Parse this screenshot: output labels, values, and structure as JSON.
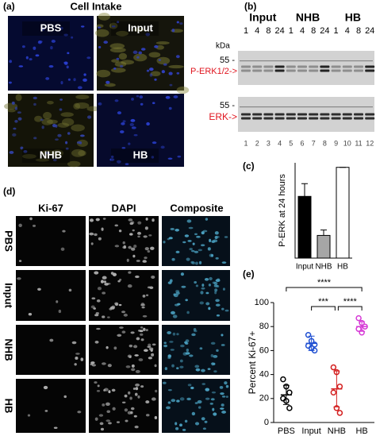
{
  "panel_a": {
    "label": "(a)",
    "title": "Cell Intake",
    "images": [
      "PBS",
      "Input",
      "NHB",
      "HB"
    ]
  },
  "panel_b": {
    "label": "(b)",
    "groups": [
      "Input",
      "NHB",
      "HB"
    ],
    "timepoints": [
      "1",
      "4",
      "8",
      "24",
      "1",
      "4",
      "8",
      "24",
      "1",
      "4",
      "8",
      "24"
    ],
    "unit": "kDa",
    "marker": "55 -",
    "band_top": "P-ERK1/2->",
    "band_bottom": "ERK->",
    "lanes": [
      "1",
      "2",
      "3",
      "4",
      "5",
      "6",
      "7",
      "8",
      "9",
      "10",
      "11",
      "12"
    ]
  },
  "panel_d": {
    "label": "(d)",
    "columns": [
      "Ki-67",
      "DAPI",
      "Composite"
    ],
    "rows": [
      "PBS",
      "Input",
      "NHB",
      "HB"
    ]
  },
  "chart_data": [
    {
      "type": "bar",
      "label": "(c)",
      "ylabel": "P-ERK at 24 hours",
      "categories": [
        "Input",
        "NHB",
        "HB"
      ],
      "values": [
        0.68,
        0.25,
        1.0
      ],
      "errors": [
        0.14,
        0.06,
        0
      ],
      "colors": [
        "#000000",
        "#a6a6a6",
        "#ffffff"
      ],
      "ylim": [
        0,
        1.05
      ]
    },
    {
      "type": "scatter",
      "label": "(e)",
      "ylabel": "Percent Ki-67+",
      "categories": [
        "PBS",
        "Input",
        "NHB",
        "HB"
      ],
      "points": [
        [
          36,
          30,
          25,
          20,
          18,
          12
        ],
        [
          73,
          68,
          65,
          64,
          62,
          60
        ],
        [
          46,
          42,
          30,
          25,
          12,
          8
        ],
        [
          87,
          83,
          80,
          78,
          75
        ]
      ],
      "means": [
        23,
        66,
        28,
        80
      ],
      "sd": [
        8,
        6,
        15,
        4
      ],
      "colors": [
        "#000000",
        "#1f4fd1",
        "#d42020",
        "#d63ad6"
      ],
      "ylim": [
        0,
        100
      ],
      "yticks": [
        0,
        20,
        40,
        60,
        80,
        100
      ],
      "significance": [
        "****",
        "***",
        "****"
      ]
    }
  ]
}
